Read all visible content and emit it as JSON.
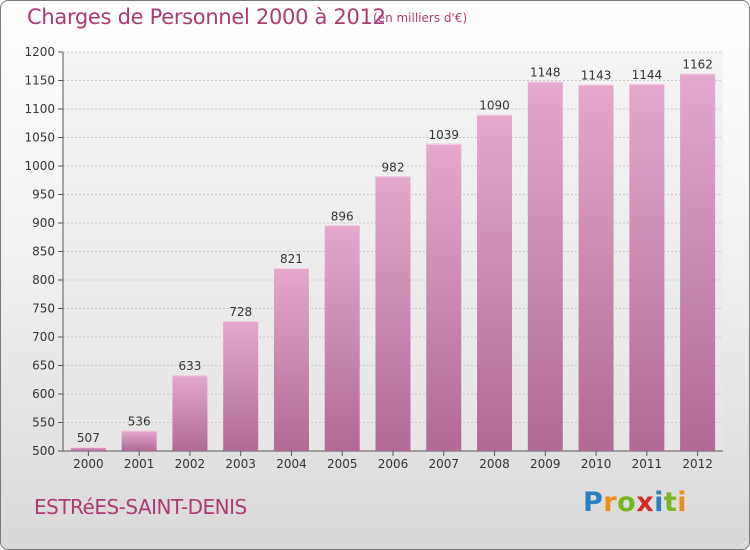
{
  "header": {
    "title": "Charges de Personnel 2000 à 2012",
    "unit": "(en milliers d'€)"
  },
  "footer": {
    "commune": "ESTRéES-SAINT-DENIS",
    "logo_letters": [
      {
        "char": "P",
        "color": "#2a7fc1"
      },
      {
        "char": "r",
        "color": "#e8901a"
      },
      {
        "char": "o",
        "color": "#7ab51d"
      },
      {
        "char": "x",
        "color": "#d42a2a"
      },
      {
        "char": "i",
        "color": "#2a7fc1"
      },
      {
        "char": "t",
        "color": "#7ab51d"
      },
      {
        "char": "i",
        "color": "#e8901a"
      }
    ]
  },
  "chart_data": {
    "type": "bar",
    "categories": [
      "2000",
      "2001",
      "2002",
      "2003",
      "2004",
      "2005",
      "2006",
      "2007",
      "2008",
      "2009",
      "2010",
      "2011",
      "2012"
    ],
    "values": [
      507,
      536,
      633,
      728,
      821,
      896,
      982,
      1039,
      1090,
      1148,
      1143,
      1144,
      1162
    ],
    "ylim": [
      500,
      1200
    ],
    "yticks": [
      500,
      550,
      600,
      650,
      700,
      750,
      800,
      850,
      900,
      950,
      1000,
      1050,
      1100,
      1150,
      1200
    ],
    "grid": true,
    "bar_color_top": "#e4a9cd",
    "bar_color_bottom": "#b06a94",
    "title_color": "#ad3a73"
  }
}
